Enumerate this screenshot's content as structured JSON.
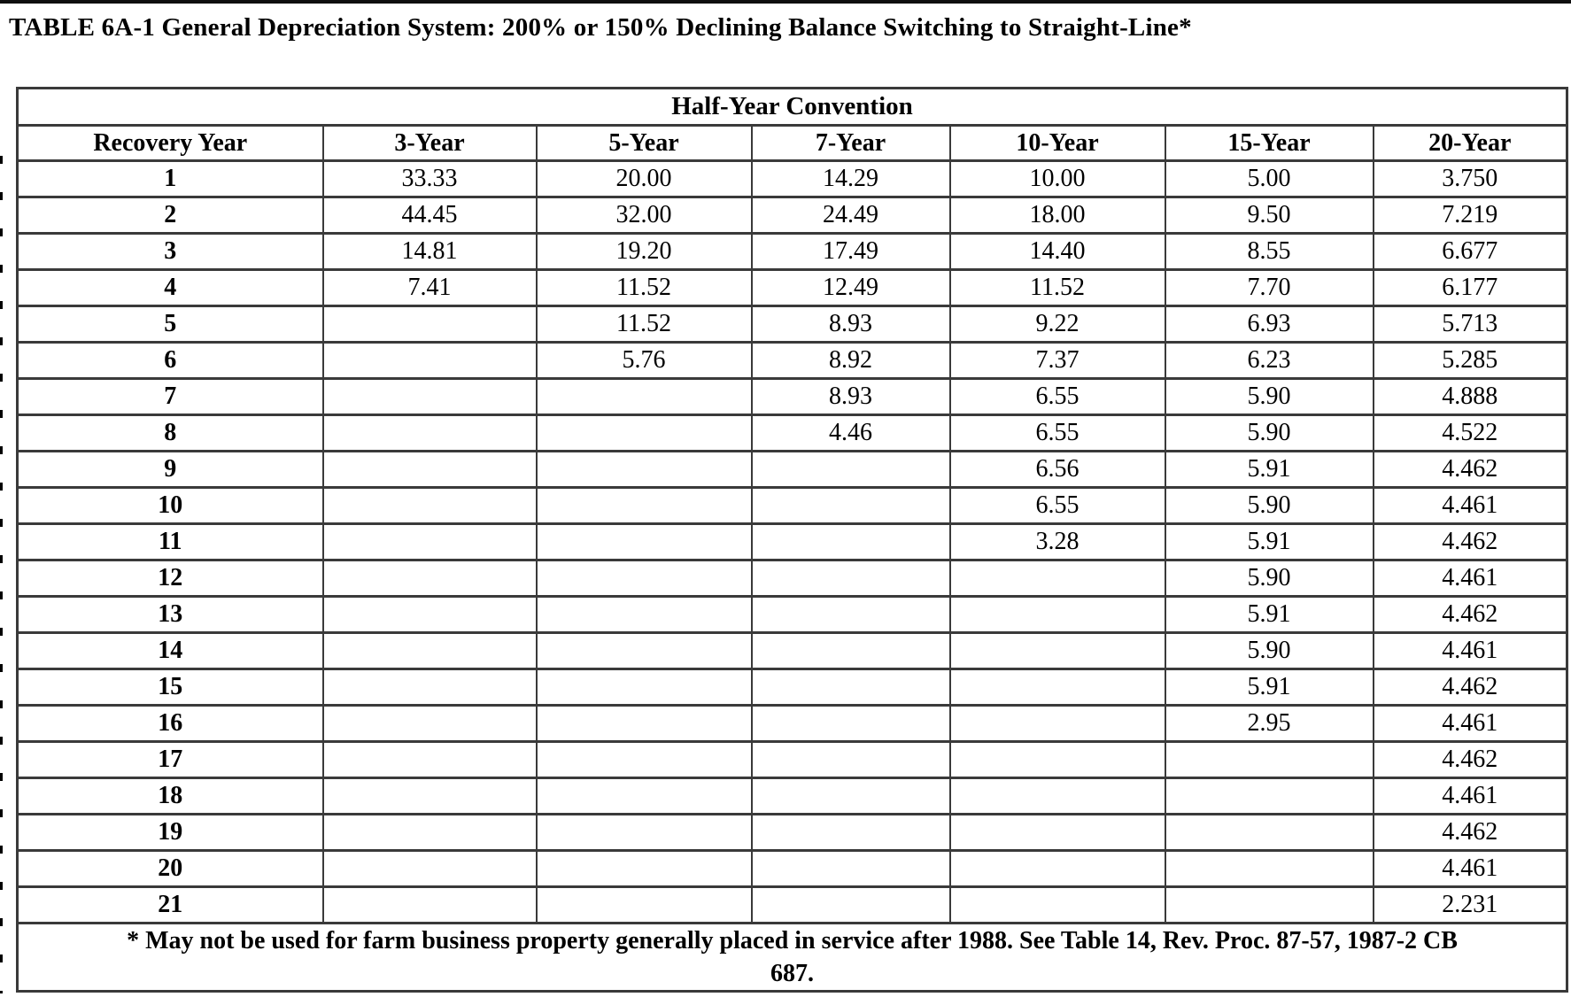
{
  "page": {
    "title": "TABLE 6A-1 General Depreciation System: 200% or 150% Declining Balance Switching to Straight-Line*"
  },
  "table": {
    "caption": "Half-Year Convention",
    "columns": [
      "Recovery Year",
      "3-Year",
      "5-Year",
      "7-Year",
      "10-Year",
      "15-Year",
      "20-Year"
    ],
    "rows": [
      {
        "recovery_year": "1",
        "values": [
          "33.33",
          "20.00",
          "14.29",
          "10.00",
          "5.00",
          "3.750"
        ]
      },
      {
        "recovery_year": "2",
        "values": [
          "44.45",
          "32.00",
          "24.49",
          "18.00",
          "9.50",
          "7.219"
        ]
      },
      {
        "recovery_year": "3",
        "values": [
          "14.81",
          "19.20",
          "17.49",
          "14.40",
          "8.55",
          "6.677"
        ]
      },
      {
        "recovery_year": "4",
        "values": [
          "7.41",
          "11.52",
          "12.49",
          "11.52",
          "7.70",
          "6.177"
        ]
      },
      {
        "recovery_year": "5",
        "values": [
          "",
          "11.52",
          "8.93",
          "9.22",
          "6.93",
          "5.713"
        ]
      },
      {
        "recovery_year": "6",
        "values": [
          "",
          "5.76",
          "8.92",
          "7.37",
          "6.23",
          "5.285"
        ]
      },
      {
        "recovery_year": "7",
        "values": [
          "",
          "",
          "8.93",
          "6.55",
          "5.90",
          "4.888"
        ]
      },
      {
        "recovery_year": "8",
        "values": [
          "",
          "",
          "4.46",
          "6.55",
          "5.90",
          "4.522"
        ]
      },
      {
        "recovery_year": "9",
        "values": [
          "",
          "",
          "",
          "6.56",
          "5.91",
          "4.462"
        ]
      },
      {
        "recovery_year": "10",
        "values": [
          "",
          "",
          "",
          "6.55",
          "5.90",
          "4.461"
        ]
      },
      {
        "recovery_year": "11",
        "values": [
          "",
          "",
          "",
          "3.28",
          "5.91",
          "4.462"
        ]
      },
      {
        "recovery_year": "12",
        "values": [
          "",
          "",
          "",
          "",
          "5.90",
          "4.461"
        ]
      },
      {
        "recovery_year": "13",
        "values": [
          "",
          "",
          "",
          "",
          "5.91",
          "4.462"
        ]
      },
      {
        "recovery_year": "14",
        "values": [
          "",
          "",
          "",
          "",
          "5.90",
          "4.461"
        ]
      },
      {
        "recovery_year": "15",
        "values": [
          "",
          "",
          "",
          "",
          "5.91",
          "4.462"
        ]
      },
      {
        "recovery_year": "16",
        "values": [
          "",
          "",
          "",
          "",
          "2.95",
          "4.461"
        ]
      },
      {
        "recovery_year": "17",
        "values": [
          "",
          "",
          "",
          "",
          "",
          "4.462"
        ]
      },
      {
        "recovery_year": "18",
        "values": [
          "",
          "",
          "",
          "",
          "",
          "4.461"
        ]
      },
      {
        "recovery_year": "19",
        "values": [
          "",
          "",
          "",
          "",
          "",
          "4.462"
        ]
      },
      {
        "recovery_year": "20",
        "values": [
          "",
          "",
          "",
          "",
          "",
          "4.461"
        ]
      },
      {
        "recovery_year": "21",
        "values": [
          "",
          "",
          "",
          "",
          "",
          "2.231"
        ]
      }
    ],
    "footnote_lines": [
      "* May not be used for farm business property generally placed in service after 1988. See Table 14, Rev. Proc. 87-57, 1987-2 CB",
      "687."
    ]
  },
  "colors": {
    "border": "#3a3a3a",
    "text": "#000000",
    "background": "#ffffff",
    "top_bar": "#0f0f0f"
  }
}
